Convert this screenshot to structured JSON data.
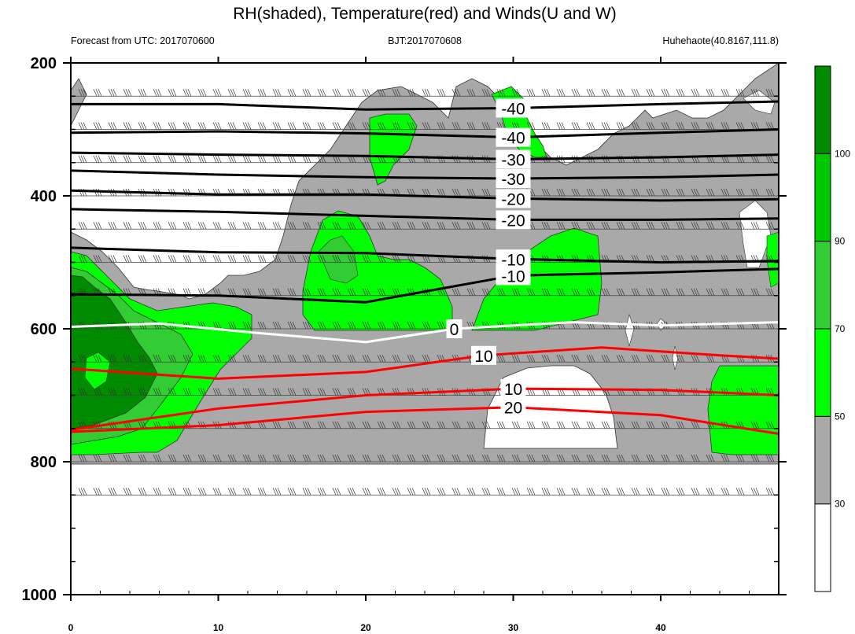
{
  "chart_data": {
    "type": "heatmap",
    "title": "RH(shaded), Temperature(red) and Winds(U and W)",
    "subtitle_left": "Forecast from UTC: 2017070600",
    "subtitle_center": "BJT:2017070608",
    "subtitle_right": "Huhehaote(40.8167,111.8)",
    "x_range": [
      0,
      48
    ],
    "x_ticks": [
      "0",
      "10",
      "20",
      "30",
      "40"
    ],
    "x_tick_values": [
      0,
      10,
      20,
      30,
      40
    ],
    "y_range": [
      200,
      1000
    ],
    "y_ticks": [
      "200",
      "400",
      "600",
      "800",
      "1000"
    ],
    "y_tick_values": [
      200,
      400,
      600,
      800,
      1000
    ],
    "colorbar": {
      "labels": [
        "30",
        "50",
        "70",
        "90",
        "100"
      ],
      "colors": [
        "#ffffff",
        "#a9a9a9",
        "#00ff00",
        "#32cd32",
        "#00c800",
        "#008b00"
      ]
    },
    "wind_levels_hpa": [
      250,
      300,
      350,
      400,
      450,
      500,
      550,
      600,
      650,
      700,
      750,
      800,
      850
    ],
    "temperature_contours": [
      {
        "label": "-40",
        "color": "#000000",
        "points": [
          [
            0,
            262
          ],
          [
            10,
            262
          ],
          [
            20,
            270
          ],
          [
            30,
            268
          ],
          [
            40,
            262
          ],
          [
            48,
            258
          ]
        ]
      },
      {
        "label": "-40",
        "color": "#000000",
        "points": [
          [
            0,
            305
          ],
          [
            10,
            303
          ],
          [
            20,
            306
          ],
          [
            30,
            312
          ],
          [
            40,
            305
          ],
          [
            48,
            300
          ]
        ]
      },
      {
        "label": "-30",
        "color": "#000000",
        "points": [
          [
            0,
            335
          ],
          [
            10,
            338
          ],
          [
            20,
            340
          ],
          [
            30,
            345
          ],
          [
            40,
            342
          ],
          [
            48,
            338
          ]
        ]
      },
      {
        "label": "-30",
        "color": "#000000",
        "points": [
          [
            0,
            362
          ],
          [
            10,
            368
          ],
          [
            20,
            372
          ],
          [
            30,
            374
          ],
          [
            40,
            372
          ],
          [
            48,
            368
          ]
        ]
      },
      {
        "label": "-20",
        "color": "#000000",
        "points": [
          [
            0,
            392
          ],
          [
            10,
            398
          ],
          [
            20,
            398
          ],
          [
            30,
            404
          ],
          [
            40,
            407
          ],
          [
            48,
            405
          ]
        ]
      },
      {
        "label": "-20",
        "color": "#000000",
        "points": [
          [
            0,
            420
          ],
          [
            10,
            424
          ],
          [
            20,
            430
          ],
          [
            30,
            436
          ],
          [
            40,
            436
          ],
          [
            48,
            434
          ]
        ]
      },
      {
        "label": "-10",
        "color": "#000000",
        "points": [
          [
            0,
            478
          ],
          [
            10,
            485
          ],
          [
            20,
            486
          ],
          [
            30,
            495
          ],
          [
            40,
            500
          ],
          [
            48,
            498
          ]
        ]
      },
      {
        "label": "-10",
        "color": "#000000",
        "points": [
          [
            0,
            548
          ],
          [
            10,
            550
          ],
          [
            20,
            560
          ],
          [
            30,
            520
          ],
          [
            40,
            515
          ],
          [
            48,
            510
          ]
        ]
      },
      {
        "label": "0",
        "color": "#ffffff",
        "points": [
          [
            0,
            597
          ],
          [
            6,
            592
          ],
          [
            12,
            605
          ],
          [
            20,
            620
          ],
          [
            26,
            600
          ],
          [
            34,
            590
          ],
          [
            40,
            595
          ],
          [
            48,
            590
          ]
        ]
      },
      {
        "label": "10",
        "color": "#ff0000",
        "points": [
          [
            0,
            660
          ],
          [
            10,
            675
          ],
          [
            20,
            665
          ],
          [
            28,
            640
          ],
          [
            36,
            628
          ],
          [
            44,
            640
          ],
          [
            48,
            645
          ]
        ]
      },
      {
        "label": "10",
        "color": "#ff0000",
        "points": [
          [
            0,
            752
          ],
          [
            10,
            720
          ],
          [
            20,
            700
          ],
          [
            30,
            690
          ],
          [
            40,
            692
          ],
          [
            48,
            700
          ]
        ]
      },
      {
        "label": "20",
        "color": "#ff0000",
        "points": [
          [
            0,
            755
          ],
          [
            10,
            745
          ],
          [
            20,
            725
          ],
          [
            30,
            718
          ],
          [
            40,
            730
          ],
          [
            48,
            758
          ]
        ]
      }
    ]
  }
}
